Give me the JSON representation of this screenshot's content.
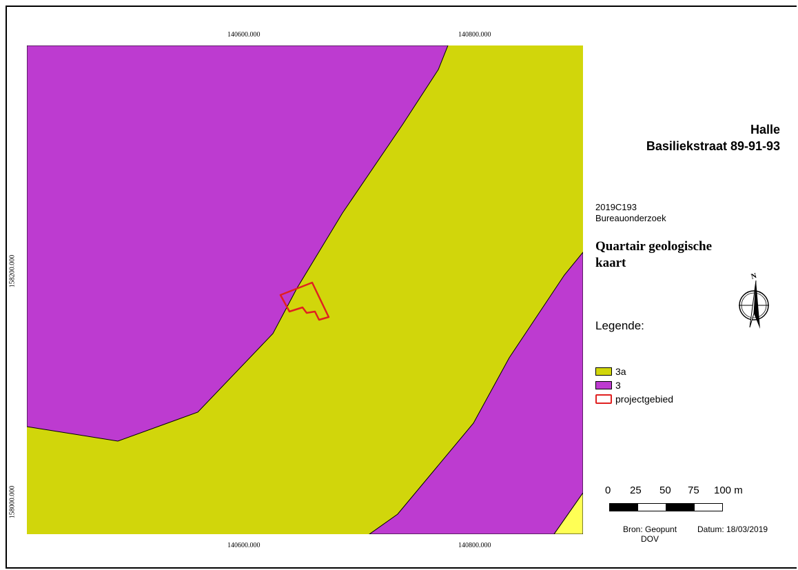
{
  "map": {
    "coords": {
      "top_x1": "140600.000",
      "top_x2": "140800.000",
      "bottom_x1": "140600.000",
      "bottom_x2": "140800.000",
      "left_y1": "158200.000",
      "left_y2": "158000.000"
    },
    "colors": {
      "unit_3a": "#d1d60b",
      "unit_3": "#bd3bd0",
      "unit_yellow": "#ffff55",
      "project_outline": "#e02020"
    }
  },
  "title": {
    "line1": "Halle",
    "line2": "Basiliekstraat 89-91-93"
  },
  "project": {
    "code": "2019C193",
    "type": "Bureauonderzoek"
  },
  "subject": {
    "line1": "Quartair geologische",
    "line2": "kaart"
  },
  "legend": {
    "title": "Legende:",
    "items": [
      {
        "label": "3a",
        "color": "#d1d60b"
      },
      {
        "label": "3",
        "color": "#bd3bd0"
      },
      {
        "label": "projectgebied",
        "color": "#e02020"
      }
    ]
  },
  "scale": {
    "labels": [
      "0",
      "25",
      "50",
      "75",
      "100 m"
    ]
  },
  "source": {
    "line1": "Bron: Geopunt",
    "line2": "DOV",
    "date": "Datum: 18/03/2019"
  },
  "north_icon": "north-arrow-compass"
}
